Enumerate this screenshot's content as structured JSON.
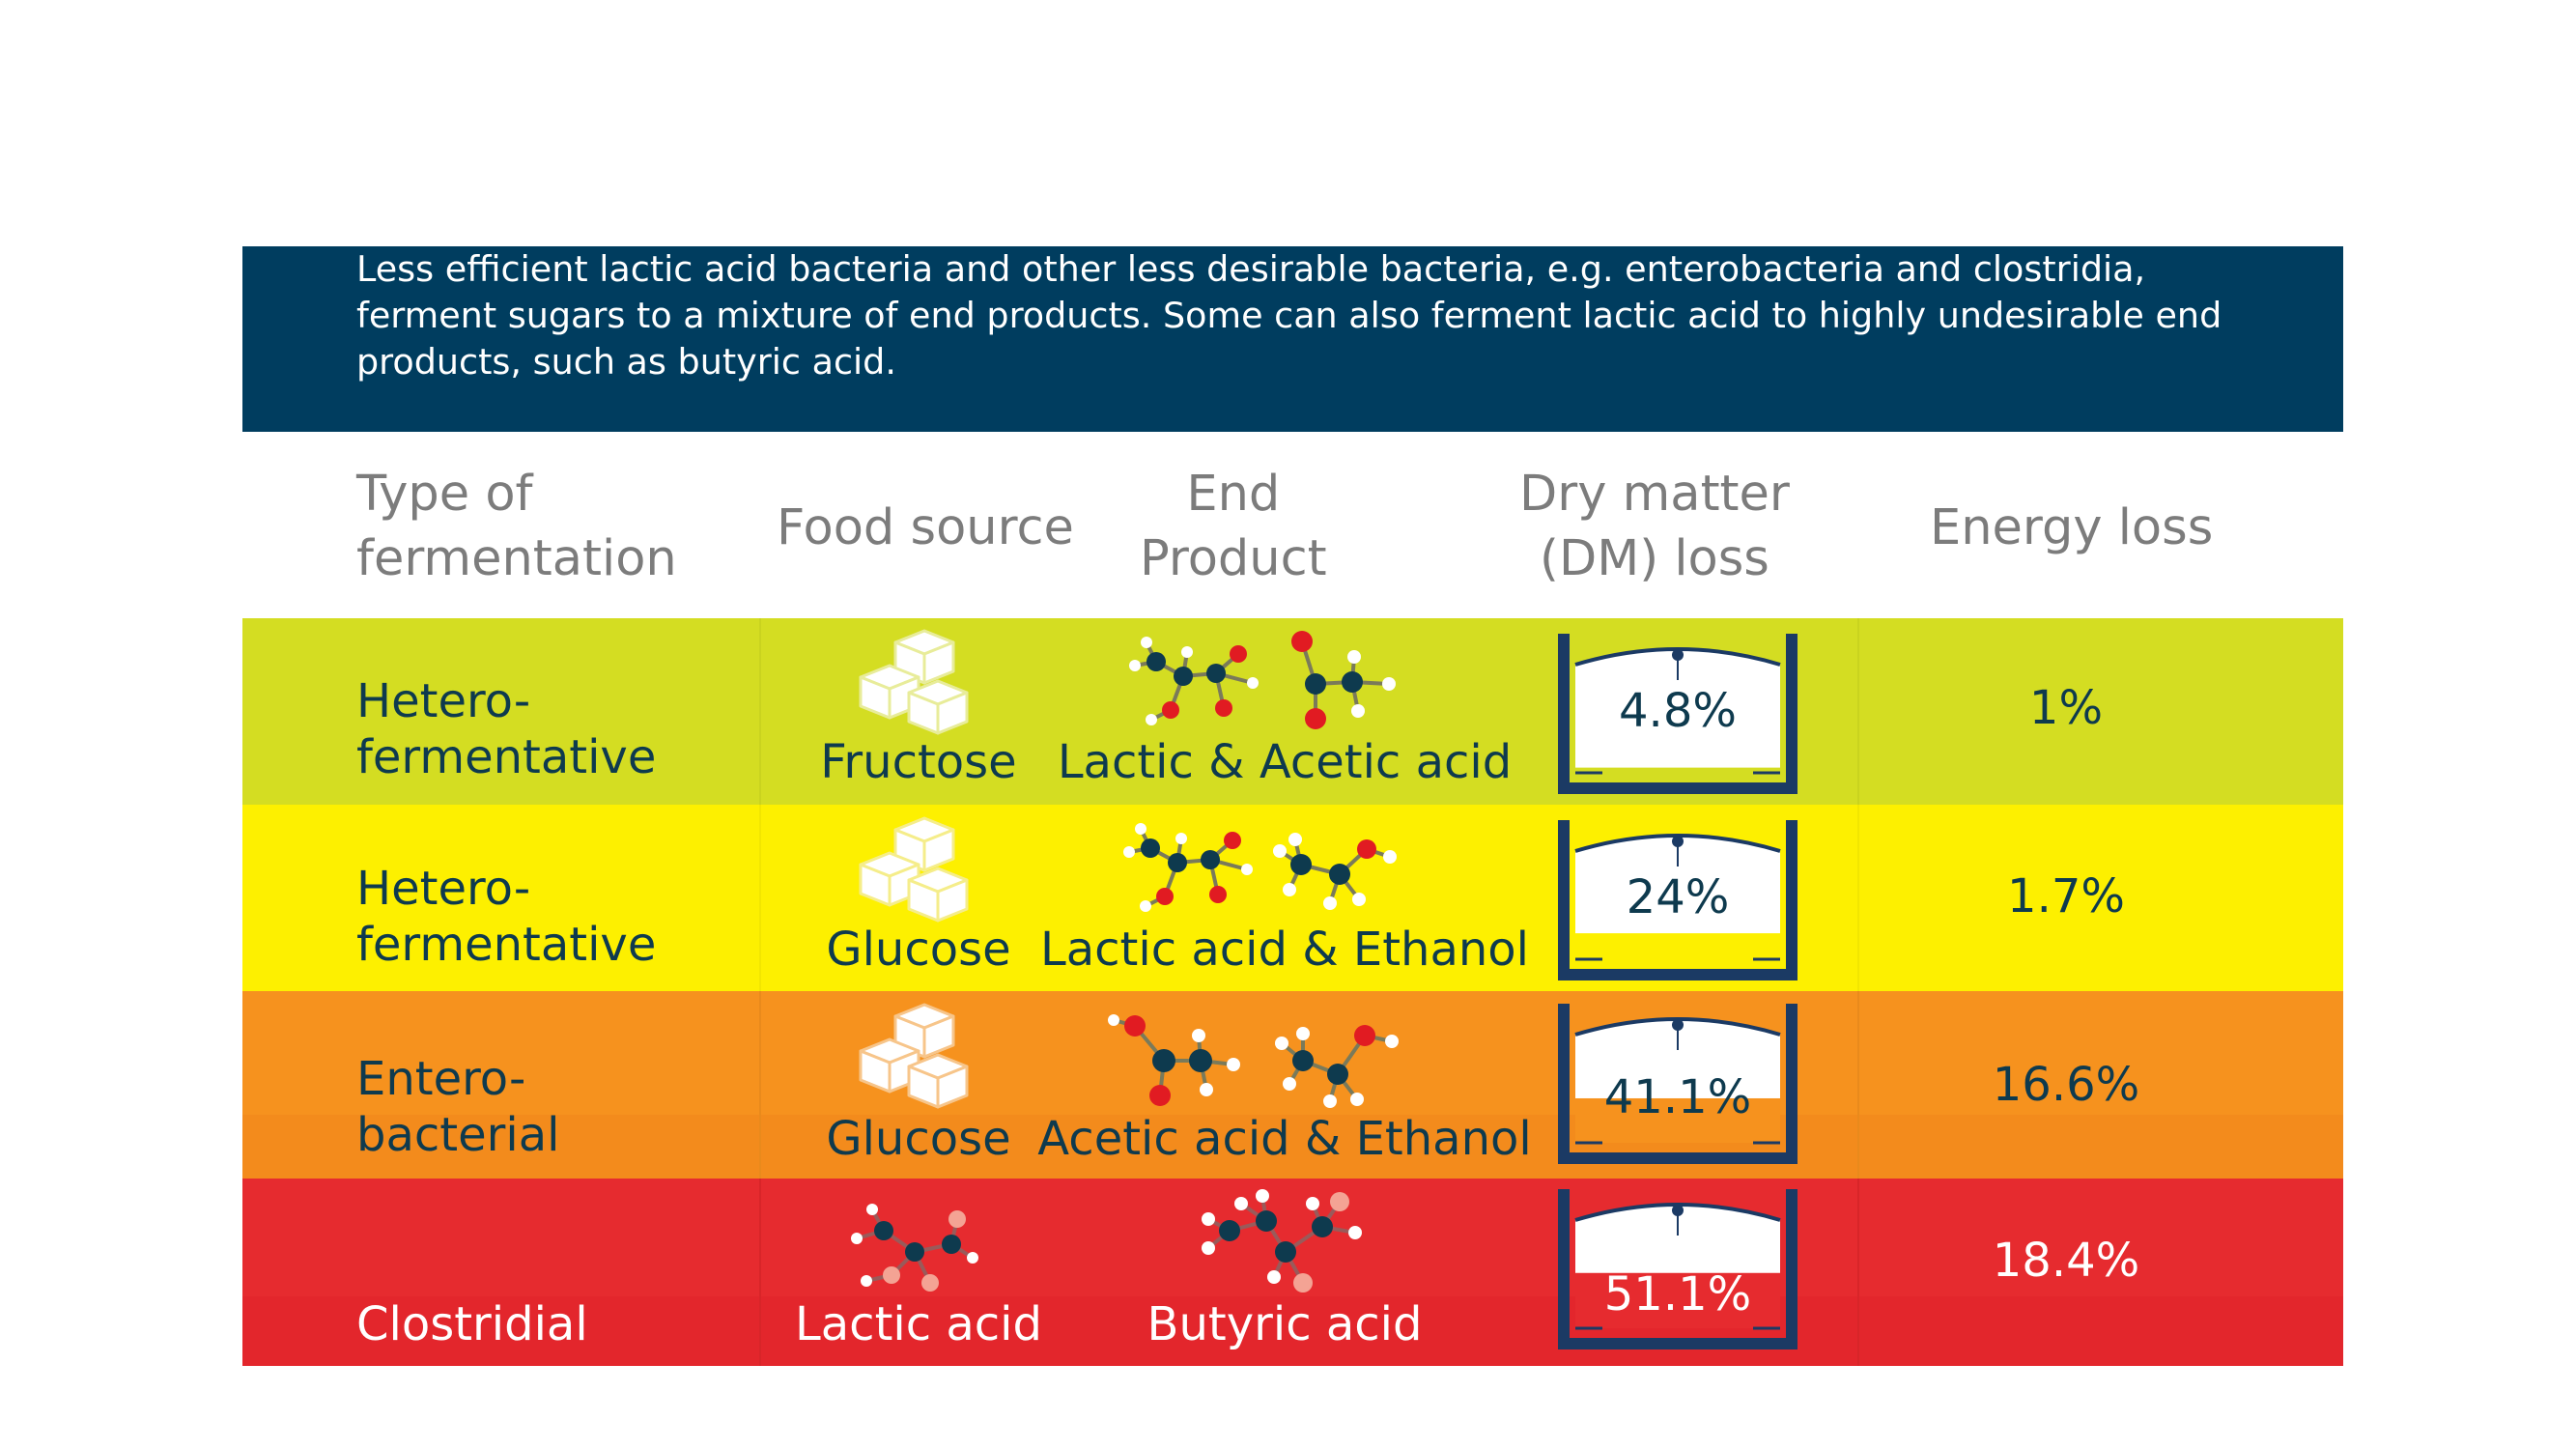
{
  "intro": {
    "text": "Less efficient lactic acid bacteria and other less desirable bacteria, e.g. enterobacteria and clostridia, ferment sugars to a mixture of end products. Some can also ferment lactic acid to highly undesirable end products, such as butyric acid."
  },
  "headers": {
    "type_line1": "Type of",
    "type_line2": "fermentation",
    "food": "Food source",
    "end_line1": "End",
    "end_line2": "Product",
    "dm_line1": "Dry matter",
    "dm_line2": "(DM) loss",
    "energy": "Energy loss"
  },
  "colors": {
    "intro_bg": "#003d5f",
    "row1": "#d4dd22",
    "row2": "#fdf000",
    "row3": "#f6921e",
    "row4": "#e62b2f",
    "text_dark": "#0e3a4e",
    "header_grey": "#7c7c7c",
    "gauge_frame": "#1b3a64"
  },
  "rows": [
    {
      "type_line1": "Hetero-",
      "type_line2": "fermentative",
      "food": "Fructose",
      "food_icon": "sugar-cubes-icon",
      "end_product": "Lactic & Acetic acid",
      "end_icons": [
        "lactic-acid-molecule-icon",
        "acetic-acid-molecule-icon"
      ],
      "dm_loss": "4.8%",
      "dm_fraction": 0.048,
      "energy_loss": "1%"
    },
    {
      "type_line1": "Hetero-",
      "type_line2": "fermentative",
      "food": "Glucose",
      "food_icon": "sugar-cubes-icon",
      "end_product": "Lactic acid & Ethanol",
      "end_icons": [
        "lactic-acid-molecule-icon",
        "ethanol-molecule-icon"
      ],
      "dm_loss": "24%",
      "dm_fraction": 0.24,
      "energy_loss": "1.7%"
    },
    {
      "type_line1": "Entero-",
      "type_line2": "bacterial",
      "food": "Glucose",
      "food_icon": "sugar-cubes-icon",
      "end_product": "Acetic acid & Ethanol",
      "end_icons": [
        "acetic-acid-molecule-icon",
        "ethanol-molecule-icon"
      ],
      "dm_loss": "41.1%",
      "dm_fraction": 0.411,
      "energy_loss": "16.6%"
    },
    {
      "type_line1": "Clostridial",
      "type_line2": "",
      "food": "Lactic acid",
      "food_icon": "lactic-acid-molecule-icon",
      "end_product": "Butyric acid",
      "end_icons": [
        "butyric-acid-molecule-icon"
      ],
      "dm_loss": "51.1%",
      "dm_fraction": 0.511,
      "energy_loss": "18.4%"
    }
  ]
}
